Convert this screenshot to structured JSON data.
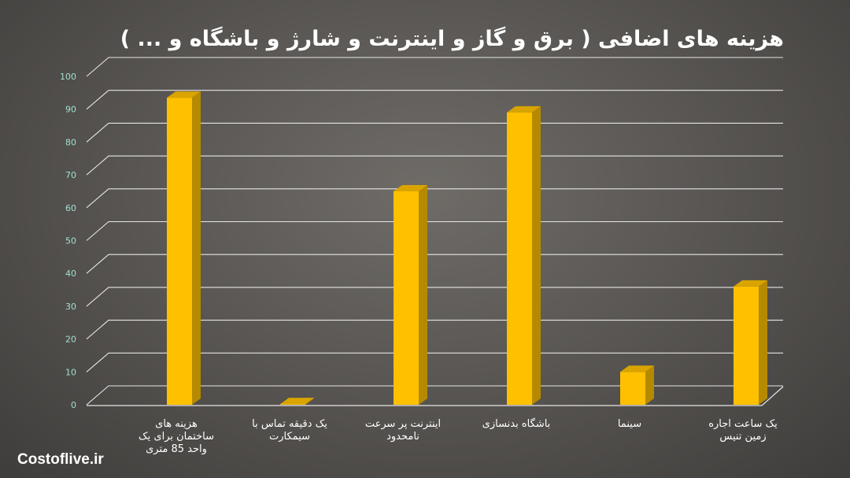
{
  "chart_data": {
    "type": "bar",
    "title": "هزینه های اضافی ( برق و گاز و اینترنت و شارژ و باشگاه و ... )",
    "categories": [
      "هزینه های ساختمان برای یک واحد 85 متری",
      "یک دقیقه تماس با سیمکارت",
      "اینترنت پر سرعت نامحدود",
      "باشگاه بدنسازی",
      "سینما",
      "یک ساعت اجاره زمین تنیس"
    ],
    "category_lines": [
      [
        "هزینه های",
        "ساختمان برای یک",
        "واحد 85 متری"
      ],
      [
        "یک دقیقه تماس با",
        "سیمکارت"
      ],
      [
        "اینترنت پر سرعت",
        "نامحدود"
      ],
      [
        "باشگاه بدنسازی"
      ],
      [
        "سینما"
      ],
      [
        "یک ساعت اجاره",
        "زمین تنیس"
      ]
    ],
    "values": [
      93.5,
      0.2,
      65,
      89,
      10,
      36
    ],
    "ylim": [
      0,
      100
    ],
    "yticks": [
      0,
      10,
      20,
      30,
      40,
      50,
      60,
      70,
      80,
      90,
      100
    ],
    "grid": true,
    "colors": {
      "bar_front": "#ffc000",
      "bar_side": "#b58a00",
      "bar_top": "#d9a400",
      "grid": "#e6e6e6",
      "tick_label": "#9fe0d0",
      "category_label": "#ffffff"
    }
  },
  "watermark": "Costoflive.ir"
}
